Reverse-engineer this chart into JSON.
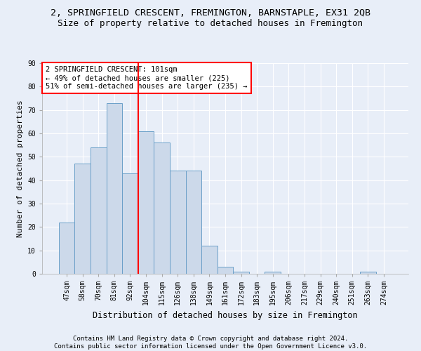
{
  "title": "2, SPRINGFIELD CRESCENT, FREMINGTON, BARNSTAPLE, EX31 2QB",
  "subtitle": "Size of property relative to detached houses in Fremington",
  "xlabel": "Distribution of detached houses by size in Fremington",
  "ylabel": "Number of detached properties",
  "categories": [
    "47sqm",
    "58sqm",
    "70sqm",
    "81sqm",
    "92sqm",
    "104sqm",
    "115sqm",
    "126sqm",
    "138sqm",
    "149sqm",
    "161sqm",
    "172sqm",
    "183sqm",
    "195sqm",
    "206sqm",
    "217sqm",
    "229sqm",
    "240sqm",
    "251sqm",
    "263sqm",
    "274sqm"
  ],
  "values": [
    22,
    47,
    54,
    73,
    43,
    61,
    56,
    44,
    44,
    12,
    3,
    1,
    0,
    1,
    0,
    0,
    0,
    0,
    0,
    1,
    0
  ],
  "bar_color": "#ccd9ea",
  "bar_edge_color": "#6a9fc8",
  "vline_x": 4.5,
  "vline_color": "red",
  "annotation_text": "2 SPRINGFIELD CRESCENT: 101sqm\n← 49% of detached houses are smaller (225)\n51% of semi-detached houses are larger (235) →",
  "annotation_box_color": "white",
  "annotation_box_edgecolor": "red",
  "ylim": [
    0,
    90
  ],
  "yticks": [
    0,
    10,
    20,
    30,
    40,
    50,
    60,
    70,
    80,
    90
  ],
  "footer_text": "Contains HM Land Registry data © Crown copyright and database right 2024.\nContains public sector information licensed under the Open Government Licence v3.0.",
  "title_fontsize": 9.5,
  "subtitle_fontsize": 9,
  "ylabel_fontsize": 8,
  "xlabel_fontsize": 8.5,
  "tick_fontsize": 7,
  "annotation_fontsize": 7.5,
  "footer_fontsize": 6.5,
  "background_color": "#e8eef8",
  "grid_color": "white"
}
